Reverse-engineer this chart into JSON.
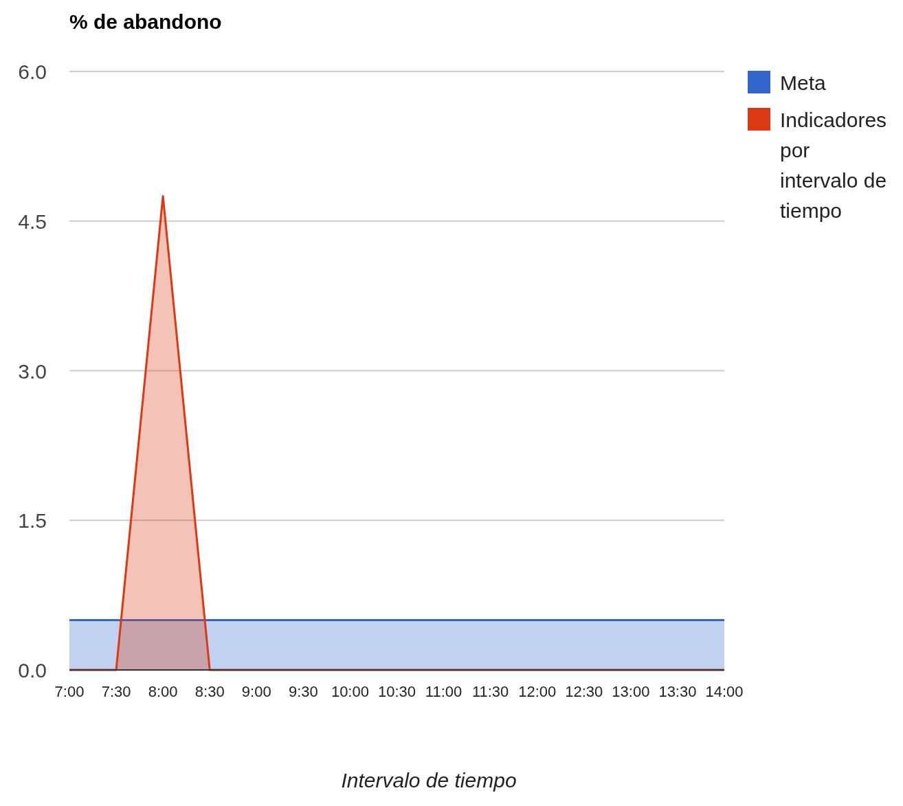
{
  "chart_data": {
    "type": "area",
    "title": "% de abandono",
    "xlabel": "Intervalo de tiempo",
    "x": [
      7,
      7.5,
      8,
      8.5,
      9,
      9.5,
      10,
      10.5,
      11,
      11.5,
      12,
      12.5,
      13,
      13.5,
      14
    ],
    "series": [
      {
        "name": "Meta",
        "color": "#3366cc",
        "values": [
          0.5,
          0.5,
          0.5,
          0.5,
          0.5,
          0.5,
          0.5,
          0.5,
          0.5,
          0.5,
          0.5,
          0.5,
          0.5,
          0.5,
          0.5
        ]
      },
      {
        "name": "Indicadores por intervalo de tiempo",
        "color": "#dc3912",
        "values": [
          0,
          0,
          4.75,
          0,
          0,
          0,
          0,
          0,
          0,
          0,
          0,
          0,
          0,
          0,
          0
        ]
      }
    ],
    "xlim": [
      7,
      14
    ],
    "xticks": [
      {
        "value": 7,
        "label": "7:00"
      },
      {
        "value": 7.5,
        "label": "7:30"
      },
      {
        "value": 8,
        "label": "8:00"
      },
      {
        "value": 8.5,
        "label": "8:30"
      },
      {
        "value": 9,
        "label": "9:00"
      },
      {
        "value": 9.5,
        "label": "9:30"
      },
      {
        "value": 10,
        "label": "10:00"
      },
      {
        "value": 10.5,
        "label": "10:30"
      },
      {
        "value": 11,
        "label": "11:00"
      },
      {
        "value": 11.5,
        "label": "11:30"
      },
      {
        "value": 12,
        "label": "12:00"
      },
      {
        "value": 12.5,
        "label": "12:30"
      },
      {
        "value": 13,
        "label": "13:00"
      },
      {
        "value": 13.5,
        "label": "13:30"
      },
      {
        "value": 14,
        "label": "14:00"
      }
    ],
    "ylim": [
      0,
      6
    ],
    "yticks": [
      {
        "value": 0,
        "label": "0.0"
      },
      {
        "value": 1.5,
        "label": "1.5"
      },
      {
        "value": 3,
        "label": "3.0"
      },
      {
        "value": 4.5,
        "label": "4.5"
      },
      {
        "value": 6,
        "label": "6.0"
      }
    ],
    "grid": "y",
    "legend": "top right"
  }
}
